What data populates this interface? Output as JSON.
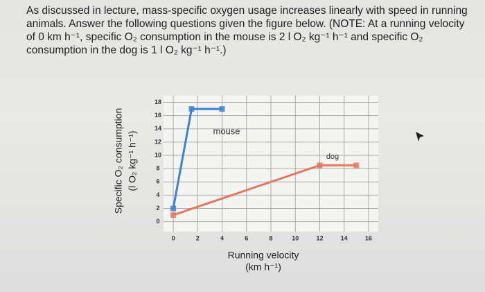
{
  "question": {
    "text": "As discussed in lecture, mass-specific oxygen usage increases linearly with speed in running animals. Answer the following questions given the figure below. (NOTE: At a running velocity of 0 km h⁻¹, specific O₂ consumption in the mouse is 2 l O₂ kg⁻¹ h⁻¹ and specific O₂ consumption in the dog is 1 l O₂ kg⁻¹ h⁻¹.)"
  },
  "chart_data": {
    "type": "line",
    "ylabel": [
      "Specific O₂ consumption",
      "(l O₂ kg⁻¹ h⁻¹)"
    ],
    "xlabel": [
      "Running velocity",
      "(km h⁻¹)"
    ],
    "series": [
      {
        "name": "mouse",
        "color": "#3b82d6",
        "x": [
          0,
          1.5,
          4
        ],
        "values": [
          2,
          17,
          17
        ]
      },
      {
        "name": "dog",
        "color": "#e2785c",
        "x": [
          0,
          12,
          15
        ],
        "values": [
          1,
          8.5,
          8.5
        ]
      }
    ],
    "xlim": [
      -0.8,
      16.8
    ],
    "ylim": [
      -1.5,
      19
    ],
    "xticks": [
      0,
      2,
      4,
      6,
      8,
      10,
      12,
      14,
      16
    ],
    "yticks": [
      0,
      2,
      4,
      6,
      8,
      10,
      12,
      14,
      16,
      18
    ],
    "grid": true
  }
}
